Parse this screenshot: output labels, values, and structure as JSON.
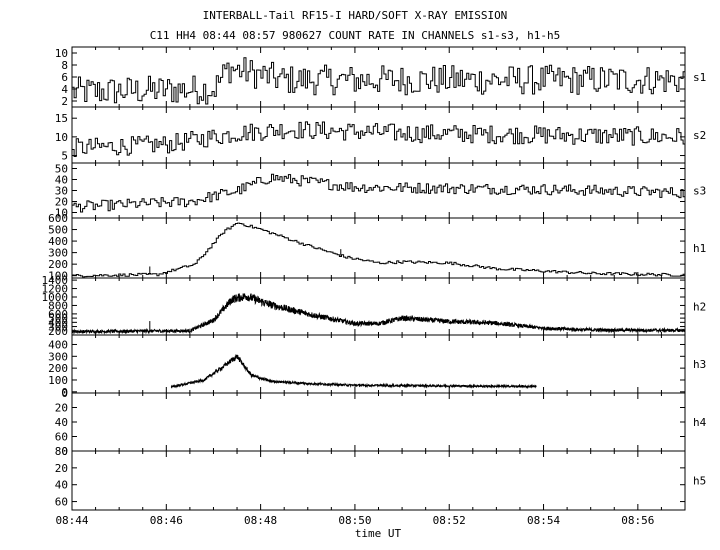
{
  "chart_data": {
    "type": "line",
    "title": "INTERBALL-Tail RF15-I HARD/SOFT X-RAY EMISSION",
    "subtitle": "C11 HH4 08:44 08:57 980627  COUNT RATE IN CHANNELS s1-s3, h1-h5",
    "xlabel": "time UT",
    "x_range_minutes": [
      0,
      13
    ],
    "x_ticks": [
      {
        "m": 0,
        "label": "08:44"
      },
      {
        "m": 2,
        "label": "08:46"
      },
      {
        "m": 4,
        "label": "08:48"
      },
      {
        "m": 6,
        "label": "08:50"
      },
      {
        "m": 8,
        "label": "08:52"
      },
      {
        "m": 10,
        "label": "08:54"
      },
      {
        "m": 12,
        "label": "08:56"
      }
    ],
    "panels": [
      {
        "name": "s1",
        "ylim": [
          1,
          11
        ],
        "yticks": [
          2,
          4,
          6,
          8,
          10
        ],
        "mode": "step",
        "profile": [
          [
            0,
            3.5
          ],
          [
            3,
            4
          ],
          [
            3.3,
            7.5
          ],
          [
            4.5,
            5.5
          ],
          [
            7,
            5.5
          ],
          [
            13,
            5.5
          ]
        ],
        "noise": 2.5
      },
      {
        "name": "s2",
        "ylim": [
          3,
          18
        ],
        "yticks": [
          5,
          10,
          15
        ],
        "mode": "step",
        "profile": [
          [
            0,
            7
          ],
          [
            2,
            8
          ],
          [
            3.5,
            11
          ],
          [
            4.5,
            12
          ],
          [
            7,
            11
          ],
          [
            13,
            10
          ]
        ],
        "noise": 2.5
      },
      {
        "name": "s3",
        "ylim": [
          5,
          55
        ],
        "yticks": [
          10,
          20,
          30,
          40,
          50
        ],
        "mode": "step",
        "profile": [
          [
            0,
            15
          ],
          [
            2.5,
            20
          ],
          [
            3.5,
            30
          ],
          [
            4.2,
            42
          ],
          [
            5,
            38
          ],
          [
            6,
            33
          ],
          [
            8,
            32
          ],
          [
            10,
            31
          ],
          [
            13,
            28
          ]
        ],
        "noise": 5
      },
      {
        "name": "h1",
        "ylim": [
          80,
          600
        ],
        "yticks": [
          100,
          200,
          300,
          400,
          500,
          600
        ],
        "mode": "step",
        "profile": [
          [
            0,
            100
          ],
          [
            1.8,
            110
          ],
          [
            2.6,
            200
          ],
          [
            3.2,
            480
          ],
          [
            3.5,
            560
          ],
          [
            4,
            500
          ],
          [
            5,
            360
          ],
          [
            5.8,
            260
          ],
          [
            6.5,
            210
          ],
          [
            7,
            220
          ],
          [
            8,
            210
          ],
          [
            9,
            160
          ],
          [
            10,
            140
          ],
          [
            11,
            120
          ],
          [
            13,
            105
          ]
        ],
        "noise": 12,
        "spikes": [
          [
            1.65,
            180
          ],
          [
            5.7,
            330
          ]
        ]
      },
      {
        "name": "h2",
        "ylim": [
          100,
          1450
        ],
        "yticks": [
          200,
          300,
          400,
          500,
          600,
          800,
          1000,
          1200,
          1400
        ],
        "mode": "noisy",
        "profile": [
          [
            0,
            180
          ],
          [
            2.5,
            200
          ],
          [
            3,
            450
          ],
          [
            3.4,
            950
          ],
          [
            3.7,
            1020
          ],
          [
            4.2,
            820
          ],
          [
            5,
            600
          ],
          [
            6,
            370
          ],
          [
            6.5,
            370
          ],
          [
            7,
            500
          ],
          [
            8,
            420
          ],
          [
            9,
            380
          ],
          [
            10,
            260
          ],
          [
            11,
            220
          ],
          [
            13,
            210
          ]
        ],
        "noise": 70,
        "spikes": [
          [
            1.65,
            430
          ]
        ]
      },
      {
        "name": "h3",
        "ylim": [
          -10,
          480
        ],
        "yticks": [
          0,
          100,
          200,
          300,
          400
        ],
        "mode": "noisy",
        "x_start": 2.1,
        "x_end": 9.85,
        "profile": [
          [
            2.1,
            40
          ],
          [
            2.8,
            100
          ],
          [
            3.2,
            210
          ],
          [
            3.5,
            300
          ],
          [
            3.8,
            140
          ],
          [
            4.2,
            90
          ],
          [
            5,
            70
          ],
          [
            6,
            55
          ],
          [
            8,
            50
          ],
          [
            9.85,
            45
          ]
        ],
        "noise": 18
      },
      {
        "name": "h4",
        "ylim": [
          0,
          80
        ],
        "yticks": [
          80,
          60,
          40,
          20,
          0
        ],
        "yaxis_inverted": true,
        "mode": "none"
      },
      {
        "name": "h5",
        "ylim": [
          0,
          70
        ],
        "yticks": [
          60,
          40,
          20,
          0
        ],
        "yaxis_inverted": true,
        "mode": "none"
      }
    ]
  }
}
